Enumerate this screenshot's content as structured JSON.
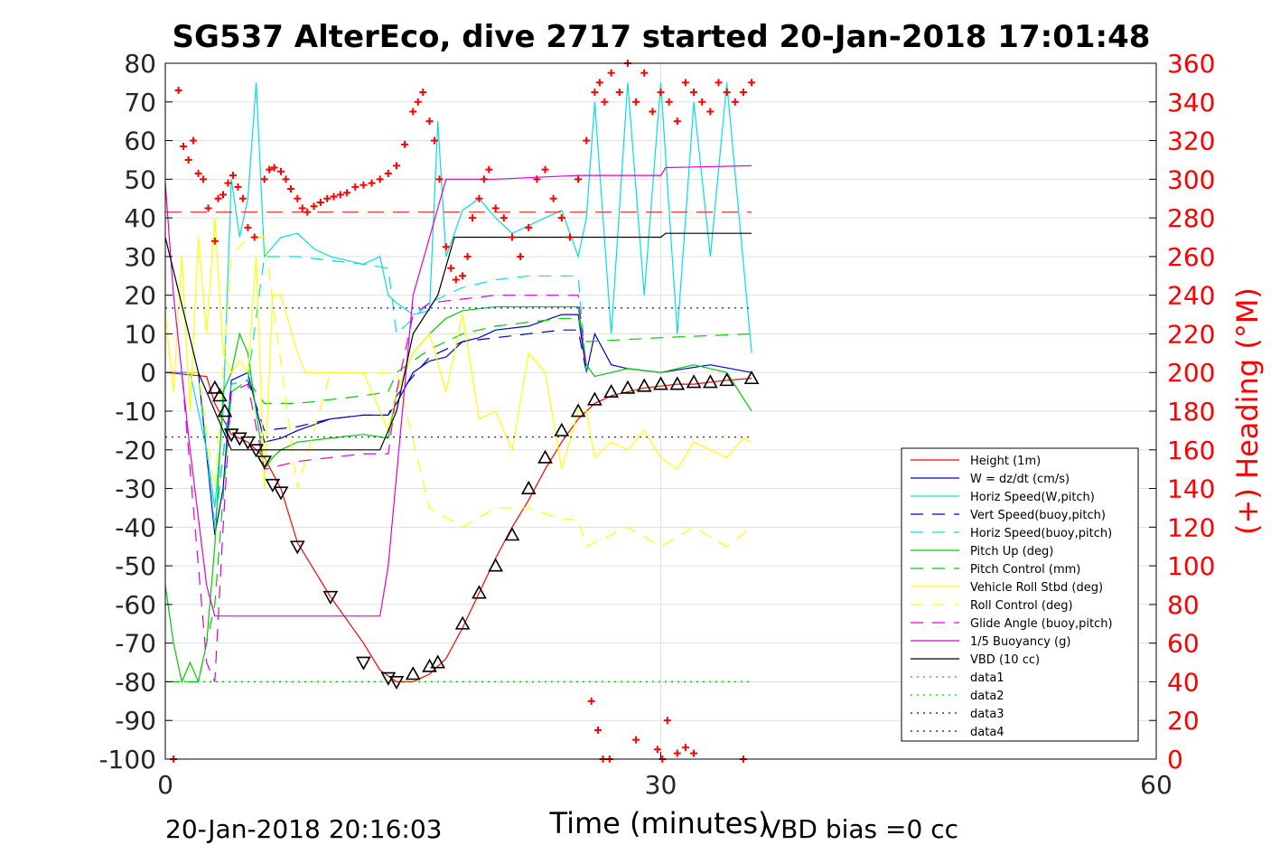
{
  "chart_data": {
    "type": "line",
    "title": "SG537 AlterEco, dive 2717 started 20-Jan-2018 17:01:48",
    "xlabel": "Time (minutes)",
    "ylabel_right": "(+) Heading (°M)",
    "footer_left": "20-Jan-2018 20:16:03",
    "footer_right": "VBD bias =0 cc",
    "xlim": [
      0,
      60
    ],
    "ylim": [
      -100,
      80
    ],
    "ylim_right": [
      0,
      360
    ],
    "xticks": [
      "0",
      "30",
      "60"
    ],
    "yticks": [
      "80",
      "70",
      "60",
      "50",
      "40",
      "30",
      "20",
      "10",
      "0",
      "-10",
      "-20",
      "-30",
      "-40",
      "-50",
      "-60",
      "-70",
      "-80",
      "-90",
      "-100"
    ],
    "yticks_right": [
      "360",
      "340",
      "320",
      "300",
      "280",
      "260",
      "240",
      "220",
      "200",
      "180",
      "160",
      "140",
      "120",
      "100",
      "80",
      "60",
      "40",
      "20",
      "0"
    ],
    "grid": true,
    "legend_position": "lower-right",
    "colors": {
      "red": "#ff0000",
      "blue": "#0000cc",
      "cyan": "#00e0e0",
      "green": "#00cc00",
      "yellow": "#ffff00",
      "magenta": "#dd00dd",
      "black": "#000000",
      "heading": "#ff0000"
    },
    "series": [
      {
        "name": "Height (1m)",
        "color": "red",
        "dash": "",
        "x": [
          0,
          2.5,
          3,
          4,
          5,
          6,
          7,
          8,
          10,
          12,
          13,
          14,
          15,
          16,
          16.5,
          17,
          18,
          19,
          20,
          21,
          22,
          23,
          24,
          25,
          26,
          27,
          28,
          29,
          30,
          31,
          32,
          33,
          34,
          35.5
        ],
        "y": [
          0,
          -1,
          -8,
          -16,
          -18,
          -22,
          -30,
          -44,
          -58,
          -70,
          -77,
          -80,
          -80,
          -78,
          -76,
          -74,
          -66,
          -57,
          -48,
          -40,
          -33,
          -25,
          -18,
          -12,
          -8,
          -6,
          -5,
          -4,
          -3.5,
          -3,
          -3,
          -2.5,
          -2,
          -1.5
        ]
      },
      {
        "name": "W = dz/dt (cm/s)",
        "color": "blue",
        "dash": "",
        "x": [
          0,
          2,
          3,
          3.5,
          4,
          5,
          6,
          7,
          8,
          10,
          12,
          13.5,
          14,
          15,
          16,
          17,
          18,
          19,
          20,
          22,
          24,
          25,
          25.5,
          26,
          27,
          28,
          30,
          33,
          35.5
        ],
        "y": [
          0,
          0,
          -42,
          -30,
          -2,
          0,
          -18,
          -17,
          -15,
          -12,
          -11,
          -11,
          -8,
          0,
          3,
          4,
          8,
          9,
          11,
          12,
          15,
          15,
          0,
          10,
          2,
          1,
          0,
          2,
          0
        ]
      },
      {
        "name": "Horiz Speed(W,pitch)",
        "color": "cyan",
        "dash": "",
        "x": [
          0,
          1.5,
          2.5,
          3,
          3.5,
          4,
          4.5,
          5,
          5.5,
          6,
          7,
          8,
          9,
          10,
          12,
          13,
          13.5,
          14,
          15,
          16,
          16.5,
          17,
          18,
          19,
          20,
          21,
          22,
          24,
          25,
          25.5,
          26,
          27,
          28,
          29,
          30,
          31,
          32,
          33,
          34,
          35.5
        ],
        "y": [
          0,
          0,
          -20,
          -35,
          -10,
          50,
          35,
          45,
          75,
          30,
          35,
          36,
          32,
          30,
          28,
          30,
          20,
          18,
          15,
          16,
          65,
          30,
          42,
          45,
          40,
          36,
          38,
          42,
          30,
          40,
          70,
          10,
          75,
          20,
          75,
          10,
          70,
          30,
          75,
          5
        ]
      },
      {
        "name": "Vert Speed(buoy,pitch)",
        "color": "blue",
        "dash": "14,10",
        "x": [
          0,
          2,
          3,
          4,
          5,
          6,
          8,
          10,
          12,
          13.5,
          14,
          16,
          18,
          20,
          22,
          24,
          25,
          25.5
        ],
        "y": [
          0,
          0,
          -40,
          -3,
          -2,
          -15,
          -14,
          -12,
          -11,
          -11,
          -6,
          4,
          8,
          9,
          10,
          11,
          11,
          0
        ]
      },
      {
        "name": "Horiz Speed(buoy,pitch)",
        "color": "cyan",
        "dash": "14,10",
        "x": [
          0,
          2,
          3,
          4,
          5,
          6,
          8,
          10,
          12,
          13.5,
          14,
          16,
          18,
          20,
          22,
          24,
          25,
          25.5
        ],
        "y": [
          0,
          0,
          -40,
          -3,
          -2,
          30,
          30,
          29,
          28,
          27,
          10,
          18,
          22,
          24,
          25,
          25,
          25,
          0
        ]
      },
      {
        "name": "Pitch Up (deg)",
        "color": "green",
        "dash": "",
        "x": [
          0,
          0.5,
          1,
          1.5,
          2,
          2.5,
          3,
          3.5,
          4,
          4.5,
          5,
          5.5,
          6,
          6.5,
          7,
          8,
          10,
          12,
          13.5,
          14,
          15,
          16,
          17,
          18,
          20,
          22,
          24,
          25,
          25.5,
          26,
          27,
          28,
          30,
          32,
          34,
          35.5
        ],
        "y": [
          -55,
          -70,
          -80,
          -75,
          -80,
          -70,
          -45,
          -5,
          0,
          10,
          5,
          -10,
          -25,
          -22,
          -20,
          -18,
          -17,
          -16,
          -17,
          -5,
          5,
          10,
          14,
          16,
          17,
          17,
          17,
          17,
          2,
          -1,
          0,
          1,
          0,
          2,
          0,
          -10
        ]
      },
      {
        "name": "Pitch Control (mm)",
        "color": "green",
        "dash": "14,10",
        "x": [
          0,
          2,
          3,
          4,
          5,
          6,
          8,
          10,
          12,
          13.5,
          14,
          16,
          18,
          20,
          22,
          24,
          25,
          25.5,
          30,
          35.5
        ],
        "y": [
          -80,
          -80,
          -60,
          -5,
          -2,
          -8,
          -8,
          -7,
          -6,
          -5,
          0,
          6,
          10,
          12,
          13,
          14,
          14,
          8,
          9,
          10
        ]
      },
      {
        "name": "Vehicle Roll Stbd (deg)",
        "color": "yellow",
        "dash": "",
        "x": [
          0,
          0.5,
          1,
          1.5,
          2,
          2.5,
          3,
          3.5,
          4,
          4.5,
          5,
          5.5,
          6,
          6.5,
          7,
          8,
          8.5,
          9,
          10,
          12,
          13,
          13.5,
          14,
          15,
          16,
          17,
          18,
          19,
          20,
          21,
          22,
          23,
          24,
          25,
          25.5,
          26,
          27,
          28,
          29,
          30,
          31,
          32,
          33,
          34,
          35,
          35.5
        ],
        "y": [
          15,
          -5,
          30,
          -10,
          35,
          10,
          40,
          5,
          0,
          3,
          0,
          30,
          -30,
          20,
          20,
          5,
          0,
          0,
          0,
          0,
          -10,
          -15,
          -5,
          5,
          10,
          -5,
          15,
          -12,
          -10,
          -20,
          5,
          0,
          -25,
          -10,
          -10,
          -22,
          -18,
          -20,
          -15,
          -22,
          -25,
          -18,
          -20,
          -22,
          -17,
          -18
        ]
      },
      {
        "name": "Roll Control (deg)",
        "color": "yellow",
        "dash": "14,10",
        "x": [
          0,
          2,
          3,
          4,
          5,
          6,
          8,
          10,
          12,
          14,
          16,
          18,
          20,
          22,
          24,
          25,
          25.5,
          28,
          30,
          32,
          34,
          35.5
        ],
        "y": [
          0,
          0,
          -30,
          30,
          35,
          35,
          -30,
          0,
          0,
          0,
          -35,
          -40,
          -35,
          -35,
          -38,
          -38,
          -45,
          -40,
          -45,
          -40,
          -45,
          -40
        ]
      },
      {
        "name": "Glide Angle (buoy,pitch)",
        "color": "magenta",
        "dash": "14,10",
        "x": [
          0,
          1,
          2,
          2.5,
          3,
          3.5,
          4,
          5,
          6,
          8,
          10,
          12,
          13.5,
          14,
          15,
          16,
          18,
          20,
          22,
          24,
          25,
          25.5
        ],
        "y": [
          0,
          0,
          -50,
          -75,
          -80,
          -40,
          -5,
          -3,
          -25,
          -23,
          -22,
          -21,
          -21,
          -5,
          15,
          18,
          19,
          20,
          20,
          20,
          20,
          0
        ]
      },
      {
        "name": "1/5 Buoyancy (g)",
        "color": "magenta",
        "dash": "",
        "x": [
          0,
          0.5,
          1.5,
          2.5,
          3,
          4,
          5,
          6,
          7,
          8,
          10,
          13,
          13.5,
          15,
          17,
          17.5,
          18,
          20,
          25,
          30,
          30.3,
          35.5
        ],
        "y": [
          49,
          20,
          -20,
          -55,
          -63,
          -63,
          -63,
          -63,
          -63,
          -63,
          -63,
          -63,
          -50,
          20,
          50,
          50,
          50,
          50,
          51,
          51,
          53,
          53.5
        ]
      },
      {
        "name": "VBD (10 cc)",
        "color": "black",
        "dash": "",
        "x": [
          0,
          2,
          4,
          5,
          10,
          13,
          14,
          15,
          16.5,
          17.5,
          18,
          20,
          25,
          30,
          30.3,
          35.5
        ],
        "y": [
          35,
          0,
          -20,
          -20,
          -20,
          -20,
          -10,
          10,
          20,
          35,
          35,
          35,
          35,
          35,
          36,
          36
        ]
      },
      {
        "name": "data1",
        "color": "green",
        "dash": "2,5",
        "x": [
          0,
          35.5
        ],
        "y": [
          -80,
          -80
        ]
      },
      {
        "name": "data2",
        "color": "green",
        "dash": "2,5",
        "x": [
          0,
          35.5
        ],
        "y": [
          -80,
          -80
        ]
      },
      {
        "name": "data3",
        "color": "blue",
        "dash": "2,5",
        "x": [
          0,
          35.5
        ],
        "y": [
          16.7,
          16.7
        ]
      },
      {
        "name": "data4",
        "color": "blue",
        "dash": "2,5",
        "x": [
          0,
          35.5
        ],
        "y": [
          -16.7,
          -16.7
        ]
      }
    ],
    "heading_series": {
      "color": "heading",
      "reference_heading": 283,
      "x": [
        0.5,
        0.8,
        1.1,
        1.4,
        1.7,
        2.0,
        2.3,
        2.6,
        3.0,
        3.2,
        3.5,
        3.8,
        4.1,
        4.4,
        4.7,
        5.0,
        5.4,
        6.0,
        6.3,
        6.6,
        7.0,
        7.3,
        7.6,
        8.0,
        8.3,
        8.6,
        9.0,
        9.4,
        9.8,
        10.2,
        10.6,
        11.0,
        11.5,
        12.0,
        12.5,
        13.0,
        13.5,
        14.0,
        14.5,
        15.0,
        15.3,
        15.6,
        16.0,
        16.3,
        16.6,
        17.0,
        17.3,
        17.6,
        18.0,
        18.3,
        18.6,
        19.0,
        19.3,
        19.6,
        20.0,
        20.5,
        21.0,
        21.5,
        22.0,
        22.5,
        23.0,
        23.5,
        24.0,
        24.5,
        25.0,
        25.5,
        26.0,
        26.3,
        26.6,
        27.0,
        27.5,
        28.0,
        28.5,
        29.0,
        29.5,
        30.0,
        30.5,
        31.0,
        31.5,
        32.0,
        32.5,
        33.0,
        33.5,
        34.0,
        34.5,
        35.0,
        35.5,
        25.8,
        26.2,
        26.5,
        26.9,
        28.5,
        29.8,
        30.1,
        30.4,
        31.0,
        31.5,
        32.0,
        35.0
      ],
      "y": [
        0,
        346,
        317,
        310,
        320,
        303,
        300,
        285,
        268,
        290,
        292,
        298,
        302,
        296,
        290,
        275,
        270,
        300,
        305,
        306,
        304,
        300,
        295,
        290,
        285,
        283,
        286,
        288,
        290,
        291,
        292,
        293,
        296,
        297,
        298,
        300,
        303,
        307,
        318,
        335,
        340,
        345,
        330,
        320,
        300,
        265,
        254,
        248,
        250,
        260,
        280,
        290,
        300,
        305,
        285,
        280,
        270,
        260,
        275,
        300,
        305,
        290,
        280,
        270,
        300,
        320,
        345,
        350,
        340,
        355,
        345,
        360,
        340,
        355,
        335,
        345,
        340,
        330,
        350,
        345,
        340,
        335,
        350,
        345,
        340,
        345,
        350,
        30,
        15,
        0,
        0,
        10,
        5,
        0,
        20,
        3,
        6,
        3,
        0
      ]
    },
    "depth_markers": {
      "x": [
        3,
        3.3,
        3.6,
        4,
        4.5,
        5,
        5.5,
        6,
        6.5,
        7,
        8,
        10,
        12,
        13.5,
        14,
        15,
        16,
        16.5,
        18,
        19,
        20,
        21,
        22,
        23,
        24,
        25,
        26,
        27,
        28,
        29,
        30,
        31,
        32,
        33,
        34,
        35.5
      ],
      "y": [
        -4,
        -6,
        -10,
        -16,
        -17,
        -18,
        -20,
        -23,
        -29,
        -31,
        -45,
        -58,
        -75,
        -79,
        -80,
        -78,
        -76,
        -75,
        -65,
        -57,
        -50,
        -42,
        -30,
        -22,
        -15,
        -10,
        -7,
        -5,
        -4,
        -3.5,
        -3,
        -3,
        -2.5,
        -2.5,
        -2,
        -1.5
      ],
      "up": [
        true,
        true,
        true,
        false,
        false,
        false,
        false,
        false,
        false,
        false,
        false,
        false,
        false,
        false,
        false,
        true,
        true,
        true,
        true,
        true,
        true,
        true,
        true,
        true,
        true,
        true,
        true,
        true,
        true,
        true,
        true,
        true,
        true,
        true,
        true,
        true
      ]
    }
  }
}
